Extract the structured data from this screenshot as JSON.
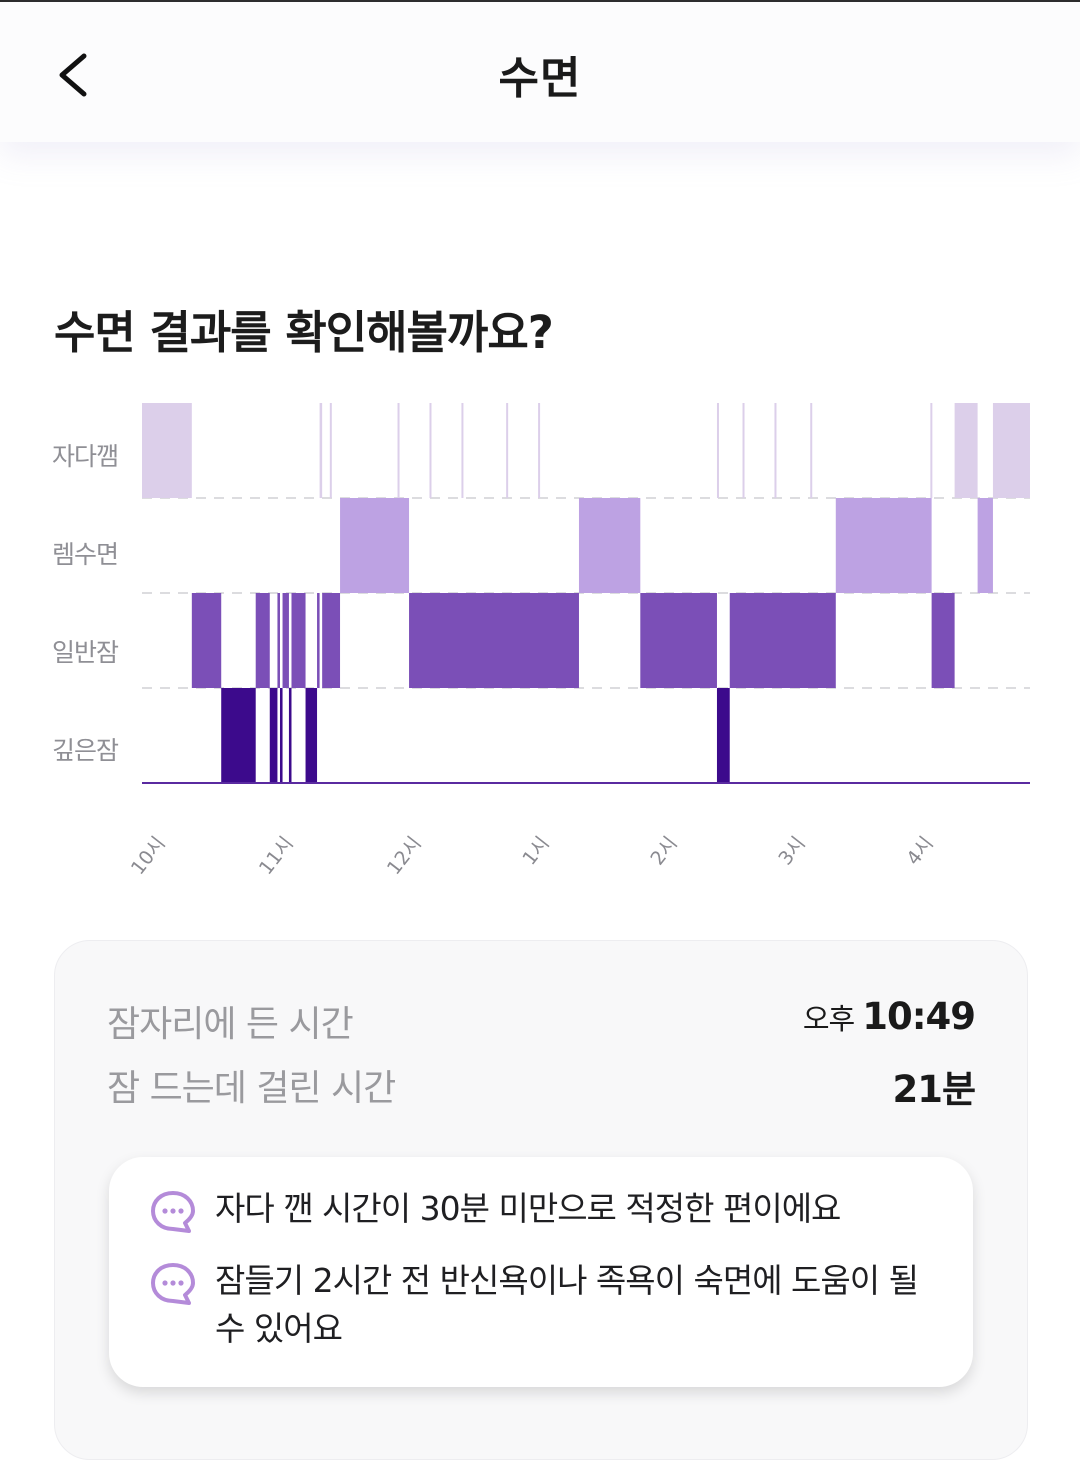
{
  "header": {
    "title": "수면",
    "back_icon": "chevron-left-icon"
  },
  "heading": "수면 결과를 확인해볼까요?",
  "chart_data": {
    "type": "hypnogram",
    "stages": [
      "자다깸",
      "렘수면",
      "일반잠",
      "깊은잠"
    ],
    "x_ticks": [
      "10시",
      "11시",
      "12시",
      "1시",
      "2시",
      "3시",
      "4시"
    ],
    "x_unit": "hours after 22:00",
    "x_range": [
      0,
      6.95
    ],
    "colors": {
      "자다깸": "#dccfea",
      "렘수면": "#bda2e3",
      "일반잠": "#7b4fb7",
      "깊은잠": "#3c0a8c"
    },
    "segments": [
      {
        "stage": "자다깸",
        "start": 0.0,
        "end": 0.39
      },
      {
        "stage": "일반잠",
        "start": 0.39,
        "end": 0.62
      },
      {
        "stage": "깊은잠",
        "start": 0.62,
        "end": 0.89
      },
      {
        "stage": "일반잠",
        "start": 0.89,
        "end": 1.0
      },
      {
        "stage": "깊은잠",
        "start": 1.0,
        "end": 1.06
      },
      {
        "stage": "일반잠",
        "start": 1.06,
        "end": 1.08
      },
      {
        "stage": "깊은잠",
        "start": 1.08,
        "end": 1.1
      },
      {
        "stage": "일반잠",
        "start": 1.1,
        "end": 1.15
      },
      {
        "stage": "깊은잠",
        "start": 1.15,
        "end": 1.17
      },
      {
        "stage": "일반잠",
        "start": 1.17,
        "end": 1.28
      },
      {
        "stage": "깊은잠",
        "start": 1.28,
        "end": 1.37
      },
      {
        "stage": "일반잠",
        "start": 1.37,
        "end": 1.39
      },
      {
        "stage": "자다깸",
        "start": 1.39,
        "end": 1.41
      },
      {
        "stage": "일반잠",
        "start": 1.41,
        "end": 1.55
      },
      {
        "stage": "렘수면",
        "start": 1.55,
        "end": 2.09
      },
      {
        "stage": "일반잠",
        "start": 2.09,
        "end": 3.42
      },
      {
        "stage": "렘수면",
        "start": 3.42,
        "end": 3.9
      },
      {
        "stage": "일반잠",
        "start": 3.9,
        "end": 4.5
      },
      {
        "stage": "깊은잠",
        "start": 4.5,
        "end": 4.6
      },
      {
        "stage": "일반잠",
        "start": 4.6,
        "end": 5.43
      },
      {
        "stage": "렘수면",
        "start": 5.43,
        "end": 6.18
      },
      {
        "stage": "일반잠",
        "start": 6.18,
        "end": 6.36
      },
      {
        "stage": "자다깸",
        "start": 6.36,
        "end": 6.54
      },
      {
        "stage": "렘수면",
        "start": 6.54,
        "end": 6.66
      },
      {
        "stage": "자다깸",
        "start": 6.66,
        "end": 6.95
      }
    ],
    "awake_spikes": [
      1.47,
      2.0,
      2.25,
      2.5,
      2.85,
      3.1,
      4.5,
      4.7,
      4.95,
      5.23,
      6.17
    ]
  },
  "summary": {
    "rows": [
      {
        "label": "잠자리에 든 시간",
        "ampm": "오후",
        "value": "10:49"
      },
      {
        "label": "잠 드는데 걸린 시간",
        "ampm": "",
        "value": "21분"
      }
    ]
  },
  "tips": [
    {
      "icon": "chat-bubble-icon",
      "text": "자다 깬 시간이 30분 미만으로 적정한 편이에요"
    },
    {
      "icon": "chat-bubble-icon",
      "text": "잠들기 2시간 전 반신욕이나 족욕이 숙면에 도움이 될 수 있어요"
    }
  ]
}
